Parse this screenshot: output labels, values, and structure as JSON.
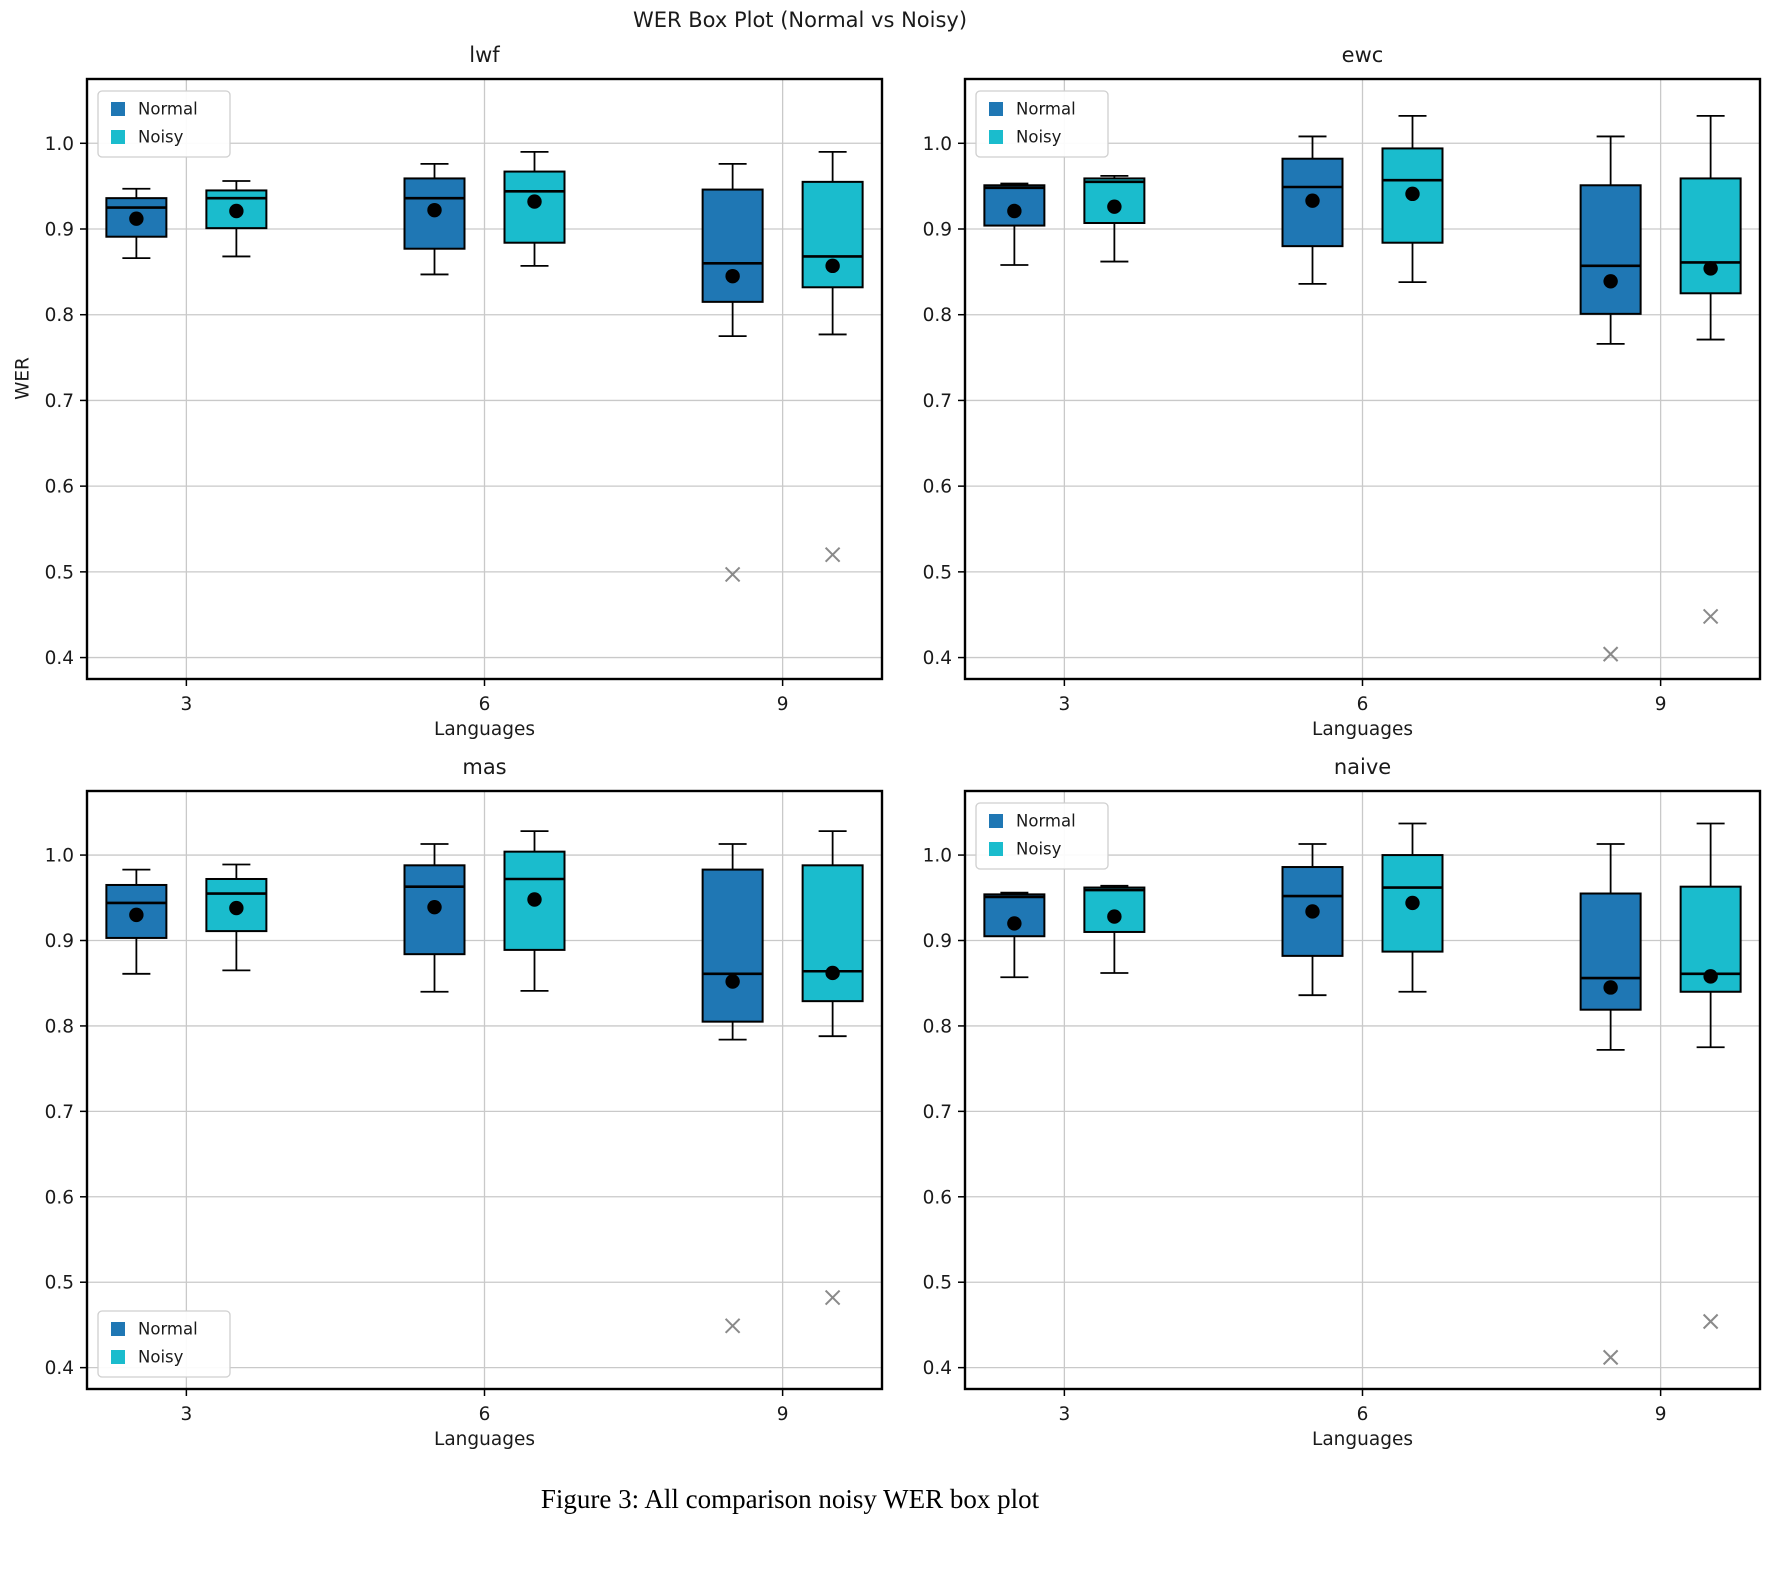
{
  "figure": {
    "suptitle": "WER Box Plot (Normal vs Noisy)",
    "caption": "Figure 3: All comparison noisy WER box plot"
  },
  "chart_data": {
    "type": "boxplot",
    "grid": "2x2",
    "xlabel": "Languages",
    "ylabel": "WER",
    "categories": [
      "3",
      "6",
      "9"
    ],
    "yticks": [
      1.0,
      0.9,
      0.8,
      0.7,
      0.6,
      0.5,
      0.4
    ],
    "ylim": [
      0.375,
      1.075
    ],
    "grid_on": true,
    "legend": {
      "entries": [
        "Normal",
        "Noisy"
      ]
    },
    "colors": {
      "Normal": "#1f77b4",
      "Noisy": "#1abccd",
      "box_edge": "#000000",
      "median": "#000000",
      "mean_marker": "#000000",
      "flier": "#8a8a8a",
      "grid": "#c9c9c9"
    },
    "subplots": [
      {
        "title": "lwf",
        "legend_position": "top-left",
        "show_ylabel": true,
        "boxes": [
          {
            "category": "3",
            "series": "Normal",
            "whislo": 0.866,
            "q1": 0.891,
            "med": 0.925,
            "q3": 0.936,
            "whishi": 0.947,
            "mean": 0.912,
            "fliers": []
          },
          {
            "category": "3",
            "series": "Noisy",
            "whislo": 0.868,
            "q1": 0.901,
            "med": 0.936,
            "q3": 0.945,
            "whishi": 0.956,
            "mean": 0.921,
            "fliers": []
          },
          {
            "category": "6",
            "series": "Normal",
            "whislo": 0.847,
            "q1": 0.877,
            "med": 0.936,
            "q3": 0.959,
            "whishi": 0.976,
            "mean": 0.922,
            "fliers": []
          },
          {
            "category": "6",
            "series": "Noisy",
            "whislo": 0.857,
            "q1": 0.884,
            "med": 0.944,
            "q3": 0.967,
            "whishi": 0.99,
            "mean": 0.932,
            "fliers": []
          },
          {
            "category": "9",
            "series": "Normal",
            "whislo": 0.775,
            "q1": 0.815,
            "med": 0.86,
            "q3": 0.946,
            "whishi": 0.976,
            "mean": 0.845,
            "fliers": [
              0.497
            ]
          },
          {
            "category": "9",
            "series": "Noisy",
            "whislo": 0.777,
            "q1": 0.832,
            "med": 0.868,
            "q3": 0.955,
            "whishi": 0.99,
            "mean": 0.857,
            "fliers": [
              0.52
            ]
          }
        ]
      },
      {
        "title": "ewc",
        "legend_position": "top-left",
        "show_ylabel": false,
        "boxes": [
          {
            "category": "3",
            "series": "Normal",
            "whislo": 0.858,
            "q1": 0.904,
            "med": 0.948,
            "q3": 0.951,
            "whishi": 0.953,
            "mean": 0.921,
            "fliers": []
          },
          {
            "category": "3",
            "series": "Noisy",
            "whislo": 0.862,
            "q1": 0.907,
            "med": 0.955,
            "q3": 0.959,
            "whishi": 0.962,
            "mean": 0.926,
            "fliers": []
          },
          {
            "category": "6",
            "series": "Normal",
            "whislo": 0.836,
            "q1": 0.88,
            "med": 0.949,
            "q3": 0.982,
            "whishi": 1.008,
            "mean": 0.933,
            "fliers": []
          },
          {
            "category": "6",
            "series": "Noisy",
            "whislo": 0.838,
            "q1": 0.884,
            "med": 0.957,
            "q3": 0.994,
            "whishi": 1.032,
            "mean": 0.941,
            "fliers": []
          },
          {
            "category": "9",
            "series": "Normal",
            "whislo": 0.766,
            "q1": 0.801,
            "med": 0.857,
            "q3": 0.951,
            "whishi": 1.008,
            "mean": 0.839,
            "fliers": [
              0.404
            ]
          },
          {
            "category": "9",
            "series": "Noisy",
            "whislo": 0.771,
            "q1": 0.825,
            "med": 0.861,
            "q3": 0.959,
            "whishi": 1.032,
            "mean": 0.854,
            "fliers": [
              0.448
            ]
          }
        ]
      },
      {
        "title": "mas",
        "legend_position": "bottom-left",
        "show_ylabel": false,
        "boxes": [
          {
            "category": "3",
            "series": "Normal",
            "whislo": 0.861,
            "q1": 0.903,
            "med": 0.944,
            "q3": 0.965,
            "whishi": 0.983,
            "mean": 0.93,
            "fliers": []
          },
          {
            "category": "3",
            "series": "Noisy",
            "whislo": 0.865,
            "q1": 0.911,
            "med": 0.955,
            "q3": 0.972,
            "whishi": 0.989,
            "mean": 0.938,
            "fliers": []
          },
          {
            "category": "6",
            "series": "Normal",
            "whislo": 0.84,
            "q1": 0.884,
            "med": 0.963,
            "q3": 0.988,
            "whishi": 1.013,
            "mean": 0.939,
            "fliers": []
          },
          {
            "category": "6",
            "series": "Noisy",
            "whislo": 0.841,
            "q1": 0.889,
            "med": 0.972,
            "q3": 1.004,
            "whishi": 1.028,
            "mean": 0.948,
            "fliers": []
          },
          {
            "category": "9",
            "series": "Normal",
            "whislo": 0.784,
            "q1": 0.805,
            "med": 0.861,
            "q3": 0.983,
            "whishi": 1.013,
            "mean": 0.852,
            "fliers": [
              0.449
            ]
          },
          {
            "category": "9",
            "series": "Noisy",
            "whislo": 0.788,
            "q1": 0.829,
            "med": 0.864,
            "q3": 0.988,
            "whishi": 1.028,
            "mean": 0.862,
            "fliers": [
              0.482
            ]
          }
        ]
      },
      {
        "title": "naive",
        "legend_position": "top-left",
        "show_ylabel": false,
        "boxes": [
          {
            "category": "3",
            "series": "Normal",
            "whislo": 0.857,
            "q1": 0.905,
            "med": 0.951,
            "q3": 0.954,
            "whishi": 0.956,
            "mean": 0.92,
            "fliers": []
          },
          {
            "category": "3",
            "series": "Noisy",
            "whislo": 0.862,
            "q1": 0.91,
            "med": 0.959,
            "q3": 0.962,
            "whishi": 0.964,
            "mean": 0.928,
            "fliers": []
          },
          {
            "category": "6",
            "series": "Normal",
            "whislo": 0.836,
            "q1": 0.882,
            "med": 0.952,
            "q3": 0.986,
            "whishi": 1.013,
            "mean": 0.934,
            "fliers": []
          },
          {
            "category": "6",
            "series": "Noisy",
            "whislo": 0.84,
            "q1": 0.887,
            "med": 0.962,
            "q3": 1.0,
            "whishi": 1.037,
            "mean": 0.944,
            "fliers": []
          },
          {
            "category": "9",
            "series": "Normal",
            "whislo": 0.772,
            "q1": 0.819,
            "med": 0.856,
            "q3": 0.955,
            "whishi": 1.013,
            "mean": 0.845,
            "fliers": [
              0.412
            ]
          },
          {
            "category": "9",
            "series": "Noisy",
            "whislo": 0.775,
            "q1": 0.84,
            "med": 0.861,
            "q3": 0.963,
            "whishi": 1.037,
            "mean": 0.858,
            "fliers": [
              0.454
            ]
          }
        ]
      }
    ]
  }
}
